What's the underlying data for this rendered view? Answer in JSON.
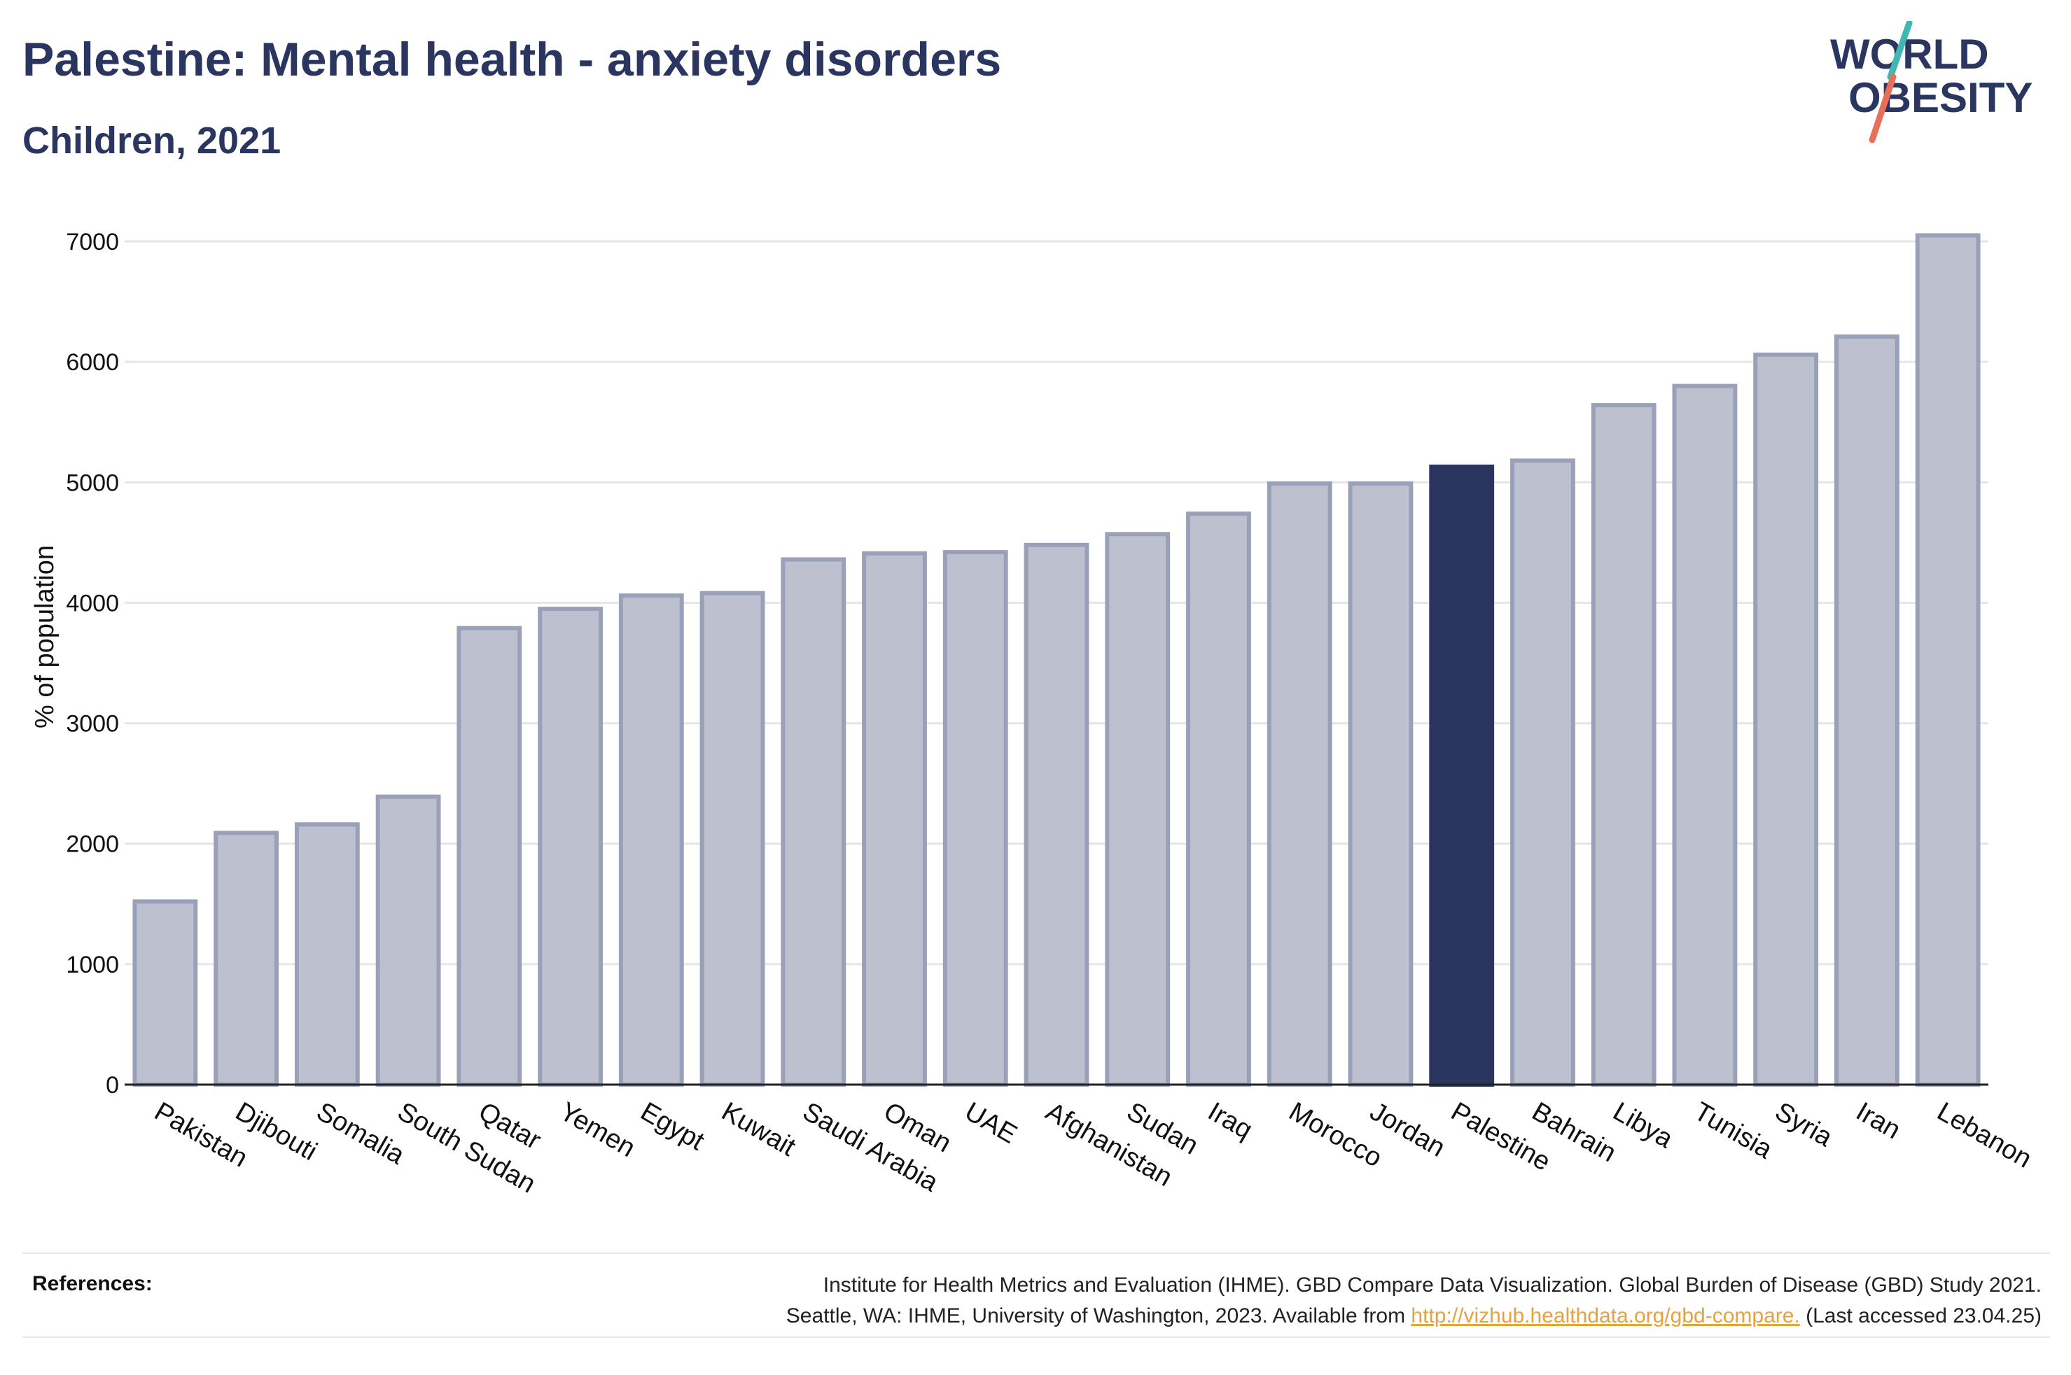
{
  "header": {
    "title": "Palestine: Mental health - anxiety disorders",
    "subtitle": "Children, 2021"
  },
  "logo": {
    "line1": "WORLD",
    "line2": "OBESITY",
    "slash_colors": [
      "#3fb8b0",
      "#e8705a"
    ]
  },
  "colors": {
    "bar": "#bcc0cf",
    "bar_border": "#9aa0b8",
    "highlight": "#2a3560",
    "grid": "#e6e6e6",
    "axis": "#222222"
  },
  "chart_data": {
    "type": "bar",
    "title": "Palestine: Mental health - anxiety disorders",
    "subtitle": "Children, 2021",
    "xlabel": "",
    "ylabel": "% of population",
    "ylim": [
      0,
      7000
    ],
    "yticks": [
      0,
      1000,
      2000,
      3000,
      4000,
      5000,
      6000,
      7000
    ],
    "grid": true,
    "highlight": "Palestine",
    "categories": [
      "Pakistan",
      "Djibouti",
      "Somalia",
      "South Sudan",
      "Qatar",
      "Yemen",
      "Egypt",
      "Kuwait",
      "Saudi Arabia",
      "Oman",
      "UAE",
      "Afghanistan",
      "Sudan",
      "Iraq",
      "Morocco",
      "Jordan",
      "Palestine",
      "Bahrain",
      "Libya",
      "Tunisia",
      "Syria",
      "Iran",
      "Lebanon"
    ],
    "values": [
      1520,
      2090,
      2160,
      2390,
      3790,
      3950,
      4060,
      4080,
      4360,
      4410,
      4420,
      4480,
      4570,
      4740,
      4990,
      4990,
      5130,
      5180,
      5640,
      5800,
      6060,
      6210,
      7050
    ]
  },
  "references": {
    "label": "References:",
    "line1": "Institute for Health Metrics and Evaluation (IHME). GBD Compare Data Visualization. Global Burden of Disease (GBD) Study 2021.",
    "line2_prefix": "Seattle, WA: IHME, University of Washington, 2023. Available from",
    "link": "http://vizhub.healthdata.org/gbd-compare.",
    "line2_suffix": "(Last accessed 23.04.25)"
  }
}
